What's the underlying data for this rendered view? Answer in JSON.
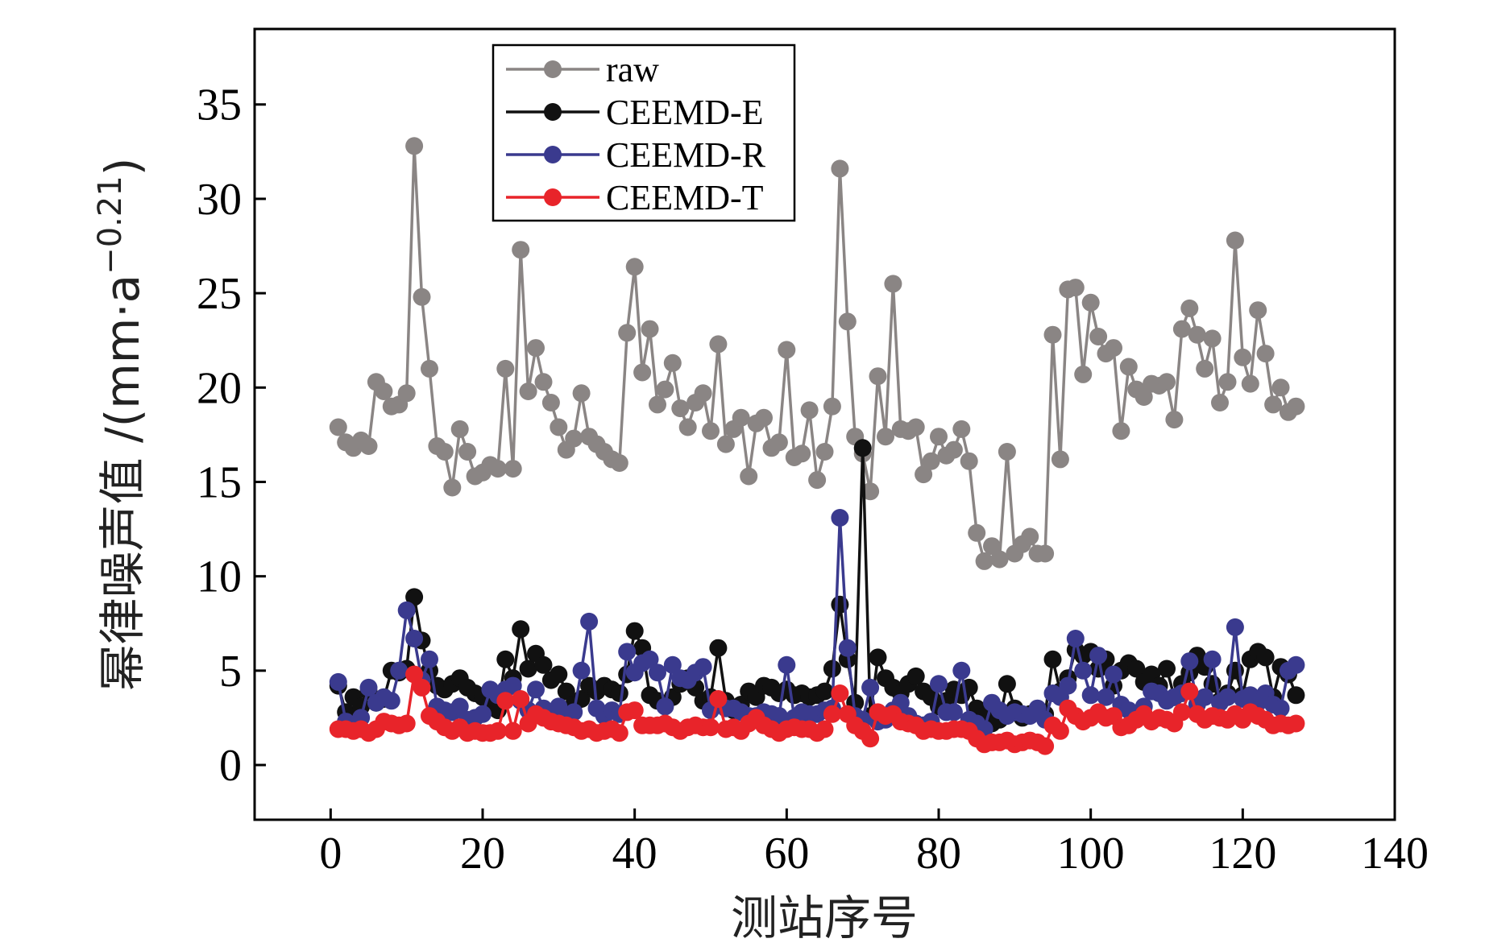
{
  "chart_data": {
    "type": "line",
    "xlabel": "测站序号",
    "ylabel": "幂律噪声值 /(mm·a",
    "ylabel_sup": "−0.21",
    "ylabel_close": ")",
    "xlim": [
      -10,
      140
    ],
    "ylim": [
      -2.9,
      39
    ],
    "xticks": [
      0,
      20,
      40,
      60,
      80,
      100,
      120,
      140
    ],
    "yticks": [
      0,
      5,
      10,
      15,
      20,
      25,
      30,
      35
    ],
    "legend_position": "top-left",
    "series": [
      {
        "name": "raw",
        "color": "#8a8584",
        "x": [
          1,
          2,
          3,
          4,
          5,
          6,
          7,
          8,
          9,
          10,
          11,
          12,
          13,
          14,
          15,
          16,
          17,
          18,
          19,
          20,
          21,
          22,
          23,
          24,
          25,
          26,
          27,
          28,
          29,
          30,
          31,
          32,
          33,
          34,
          35,
          36,
          37,
          38,
          39,
          40,
          41,
          42,
          43,
          44,
          45,
          46,
          47,
          48,
          49,
          50,
          51,
          52,
          53,
          54,
          55,
          56,
          57,
          58,
          59,
          60,
          61,
          62,
          63,
          64,
          65,
          66,
          67,
          68,
          69,
          70,
          71,
          72,
          73,
          74,
          75,
          76,
          77,
          78,
          79,
          80,
          81,
          82,
          83,
          84,
          85,
          86,
          87,
          88,
          89,
          90,
          91,
          92,
          93,
          94,
          95,
          96,
          97,
          98,
          99,
          100,
          101,
          102,
          103,
          104,
          105,
          106,
          107,
          108,
          109,
          110,
          111,
          112,
          113,
          114,
          115,
          116,
          117,
          118,
          119,
          120,
          121,
          122,
          123,
          124,
          125,
          126,
          127
        ],
        "values": [
          17.9,
          17.1,
          16.8,
          17.2,
          16.9,
          20.3,
          19.8,
          19.0,
          19.1,
          19.7,
          32.8,
          24.8,
          21.0,
          16.9,
          16.6,
          14.7,
          17.8,
          16.6,
          15.3,
          15.5,
          15.9,
          15.7,
          21.0,
          15.7,
          27.3,
          19.8,
          22.1,
          20.3,
          19.2,
          17.9,
          16.7,
          17.3,
          19.7,
          17.4,
          17.0,
          16.6,
          16.2,
          16.0,
          22.9,
          26.4,
          20.8,
          23.1,
          19.1,
          19.9,
          21.3,
          18.9,
          17.9,
          19.2,
          19.7,
          17.7,
          22.3,
          17.0,
          17.8,
          18.4,
          15.3,
          18.1,
          18.4,
          16.8,
          17.1,
          22.0,
          16.3,
          16.5,
          18.8,
          15.1,
          16.6,
          19.0,
          31.6,
          23.5,
          17.4,
          16.5,
          14.5,
          20.6,
          17.4,
          25.5,
          17.8,
          17.7,
          17.9,
          15.4,
          16.1,
          17.4,
          16.4,
          16.7,
          17.8,
          16.1,
          12.3,
          10.8,
          11.6,
          10.9,
          16.6,
          11.2,
          11.7,
          12.1,
          11.2,
          11.2,
          22.8,
          16.2,
          25.2,
          25.3,
          20.7,
          24.5,
          22.7,
          21.8,
          22.1,
          17.7,
          21.1,
          19.9,
          19.5,
          20.2,
          20.1,
          20.3,
          18.3,
          23.1,
          24.2,
          22.8,
          21.0,
          22.6,
          19.2,
          20.3,
          27.8,
          21.6,
          20.2,
          24.1,
          21.8,
          19.1,
          20.0,
          18.7,
          19.0
        ]
      },
      {
        "name": "CEEMD-E",
        "color": "#111111",
        "x": [
          1,
          2,
          3,
          4,
          5,
          6,
          7,
          8,
          9,
          10,
          11,
          12,
          13,
          14,
          15,
          16,
          17,
          18,
          19,
          20,
          21,
          22,
          23,
          24,
          25,
          26,
          27,
          28,
          29,
          30,
          31,
          32,
          33,
          34,
          35,
          36,
          37,
          38,
          39,
          40,
          41,
          42,
          43,
          44,
          45,
          46,
          47,
          48,
          49,
          50,
          51,
          52,
          53,
          54,
          55,
          56,
          57,
          58,
          59,
          60,
          61,
          62,
          63,
          64,
          65,
          66,
          67,
          68,
          69,
          70,
          71,
          72,
          73,
          74,
          75,
          76,
          77,
          78,
          79,
          80,
          81,
          82,
          83,
          84,
          85,
          86,
          87,
          88,
          89,
          90,
          91,
          92,
          93,
          94,
          95,
          96,
          97,
          98,
          99,
          100,
          101,
          102,
          103,
          104,
          105,
          106,
          107,
          108,
          109,
          110,
          111,
          112,
          113,
          114,
          115,
          116,
          117,
          118,
          119,
          120,
          121,
          122,
          123,
          124,
          125,
          126,
          127
        ],
        "values": [
          4.2,
          2.8,
          3.6,
          3.1,
          3.9,
          3.3,
          3.5,
          5.0,
          4.9,
          5.1,
          8.9,
          6.6,
          5.0,
          4.2,
          4.0,
          4.3,
          4.6,
          4.1,
          3.8,
          3.6,
          3.3,
          2.9,
          5.6,
          4.6,
          7.2,
          5.1,
          5.9,
          5.3,
          4.5,
          4.8,
          3.9,
          3.2,
          3.5,
          4.2,
          3.9,
          4.2,
          4.0,
          3.8,
          4.8,
          7.1,
          6.2,
          3.7,
          3.4,
          3.2,
          3.6,
          4.3,
          4.6,
          4.1,
          3.4,
          3.6,
          6.2,
          3.4,
          2.9,
          3.2,
          3.9,
          3.6,
          4.2,
          4.1,
          3.8,
          4.0,
          3.7,
          3.8,
          3.6,
          3.7,
          3.9,
          5.1,
          8.5,
          5.6,
          3.3,
          16.8,
          2.6,
          5.7,
          4.6,
          4.1,
          3.8,
          4.3,
          4.7,
          3.9,
          3.6,
          3.1,
          3.4,
          4.0,
          3.7,
          4.1,
          3.0,
          2.6,
          2.2,
          2.4,
          4.3,
          3.0,
          2.5,
          2.7,
          2.9,
          2.7,
          5.6,
          3.9,
          4.6,
          6.1,
          5.8,
          6.0,
          5.1,
          5.6,
          4.2,
          5.0,
          5.4,
          5.1,
          4.4,
          4.8,
          4.2,
          5.1,
          3.6,
          4.3,
          4.9,
          5.8,
          5.2,
          4.3,
          3.4,
          3.8,
          5.0,
          3.7,
          5.6,
          6.0,
          5.7,
          3.6,
          5.2,
          4.8,
          3.7
        ]
      },
      {
        "name": "CEEMD-R",
        "color": "#3a3a8e",
        "x": [
          1,
          2,
          3,
          4,
          5,
          6,
          7,
          8,
          9,
          10,
          11,
          12,
          13,
          14,
          15,
          16,
          17,
          18,
          19,
          20,
          21,
          22,
          23,
          24,
          25,
          26,
          27,
          28,
          29,
          30,
          31,
          32,
          33,
          34,
          35,
          36,
          37,
          38,
          39,
          40,
          41,
          42,
          43,
          44,
          45,
          46,
          47,
          48,
          49,
          50,
          51,
          52,
          53,
          54,
          55,
          56,
          57,
          58,
          59,
          60,
          61,
          62,
          63,
          64,
          65,
          66,
          67,
          68,
          69,
          70,
          71,
          72,
          73,
          74,
          75,
          76,
          77,
          78,
          79,
          80,
          81,
          82,
          83,
          84,
          85,
          86,
          87,
          88,
          89,
          90,
          91,
          92,
          93,
          94,
          95,
          96,
          97,
          98,
          99,
          100,
          101,
          102,
          103,
          104,
          105,
          106,
          107,
          108,
          109,
          110,
          111,
          112,
          113,
          114,
          115,
          116,
          117,
          118,
          119,
          120,
          121,
          122,
          123,
          124,
          125,
          126,
          127
        ],
        "values": [
          4.4,
          2.3,
          2.1,
          2.5,
          4.1,
          3.3,
          3.6,
          3.4,
          5.0,
          8.2,
          6.7,
          4.5,
          5.6,
          3.1,
          2.9,
          2.8,
          3.1,
          2.4,
          2.5,
          2.7,
          4.0,
          3.7,
          4.0,
          4.2,
          3.4,
          2.9,
          4.0,
          3.0,
          2.7,
          3.1,
          2.6,
          2.8,
          5.0,
          7.6,
          3.0,
          2.6,
          2.9,
          2.7,
          6.0,
          4.9,
          5.4,
          5.6,
          4.9,
          3.1,
          5.3,
          4.6,
          4.5,
          4.9,
          5.2,
          2.9,
          3.4,
          3.0,
          3.0,
          2.8,
          2.6,
          2.6,
          2.8,
          2.7,
          2.6,
          5.3,
          2.5,
          2.8,
          2.7,
          2.7,
          2.9,
          3.0,
          13.1,
          6.2,
          2.6,
          2.4,
          4.1,
          2.3,
          2.4,
          2.9,
          3.3,
          2.6,
          2.2,
          2.1,
          2.3,
          4.3,
          2.8,
          2.8,
          5.0,
          2.4,
          2.2,
          1.9,
          3.3,
          2.9,
          2.6,
          2.8,
          2.7,
          2.6,
          3.0,
          2.4,
          3.8,
          3.6,
          4.2,
          6.7,
          5.0,
          3.7,
          5.8,
          3.6,
          4.8,
          3.2,
          2.9,
          2.7,
          3.1,
          3.9,
          3.8,
          3.4,
          3.6,
          3.8,
          5.5,
          3.2,
          3.6,
          5.6,
          3.3,
          3.6,
          7.3,
          3.5,
          3.7,
          3.3,
          3.8,
          3.2,
          3.0,
          5.0,
          5.3
        ]
      },
      {
        "name": "CEEMD-T",
        "color": "#e8242a",
        "x": [
          1,
          2,
          3,
          4,
          5,
          6,
          7,
          8,
          9,
          10,
          11,
          12,
          13,
          14,
          15,
          16,
          17,
          18,
          19,
          20,
          21,
          22,
          23,
          24,
          25,
          26,
          27,
          28,
          29,
          30,
          31,
          32,
          33,
          34,
          35,
          36,
          37,
          38,
          39,
          40,
          41,
          42,
          43,
          44,
          45,
          46,
          47,
          48,
          49,
          50,
          51,
          52,
          53,
          54,
          55,
          56,
          57,
          58,
          59,
          60,
          61,
          62,
          63,
          64,
          65,
          66,
          67,
          68,
          69,
          70,
          71,
          72,
          73,
          74,
          75,
          76,
          77,
          78,
          79,
          80,
          81,
          82,
          83,
          84,
          85,
          86,
          87,
          88,
          89,
          90,
          91,
          92,
          93,
          94,
          95,
          96,
          97,
          98,
          99,
          100,
          101,
          102,
          103,
          104,
          105,
          106,
          107,
          108,
          109,
          110,
          111,
          112,
          113,
          114,
          115,
          116,
          117,
          118,
          119,
          120,
          121,
          122,
          123,
          124,
          125,
          126,
          127
        ],
        "values": [
          1.9,
          1.9,
          1.8,
          1.9,
          1.7,
          1.9,
          2.3,
          2.2,
          2.1,
          2.2,
          4.8,
          4.1,
          2.6,
          2.3,
          2.0,
          1.8,
          2.0,
          1.7,
          1.8,
          1.7,
          1.7,
          1.8,
          3.4,
          1.8,
          3.5,
          2.2,
          2.7,
          2.5,
          2.3,
          2.2,
          2.1,
          2.0,
          1.8,
          1.9,
          1.7,
          1.8,
          1.9,
          1.7,
          2.8,
          2.9,
          2.1,
          2.1,
          2.1,
          2.2,
          2.0,
          1.8,
          2.0,
          2.1,
          2.0,
          2.0,
          3.5,
          1.9,
          2.0,
          1.8,
          2.2,
          2.5,
          2.1,
          1.9,
          1.7,
          1.9,
          2.0,
          1.9,
          1.9,
          1.7,
          1.9,
          2.7,
          3.8,
          2.7,
          2.1,
          1.8,
          1.4,
          2.8,
          2.6,
          2.7,
          2.3,
          2.2,
          2.1,
          1.8,
          1.9,
          1.8,
          1.8,
          1.9,
          1.9,
          1.8,
          1.4,
          1.1,
          1.2,
          1.2,
          1.3,
          1.1,
          1.2,
          1.3,
          1.2,
          1.0,
          2.1,
          1.8,
          3.0,
          2.6,
          2.3,
          2.5,
          2.8,
          2.5,
          2.6,
          2.0,
          2.1,
          2.4,
          2.7,
          2.3,
          2.5,
          2.4,
          2.2,
          2.8,
          3.9,
          2.7,
          2.4,
          2.6,
          2.5,
          2.4,
          2.7,
          2.4,
          2.8,
          2.6,
          2.4,
          2.1,
          2.2,
          2.1,
          2.2
        ]
      }
    ]
  }
}
